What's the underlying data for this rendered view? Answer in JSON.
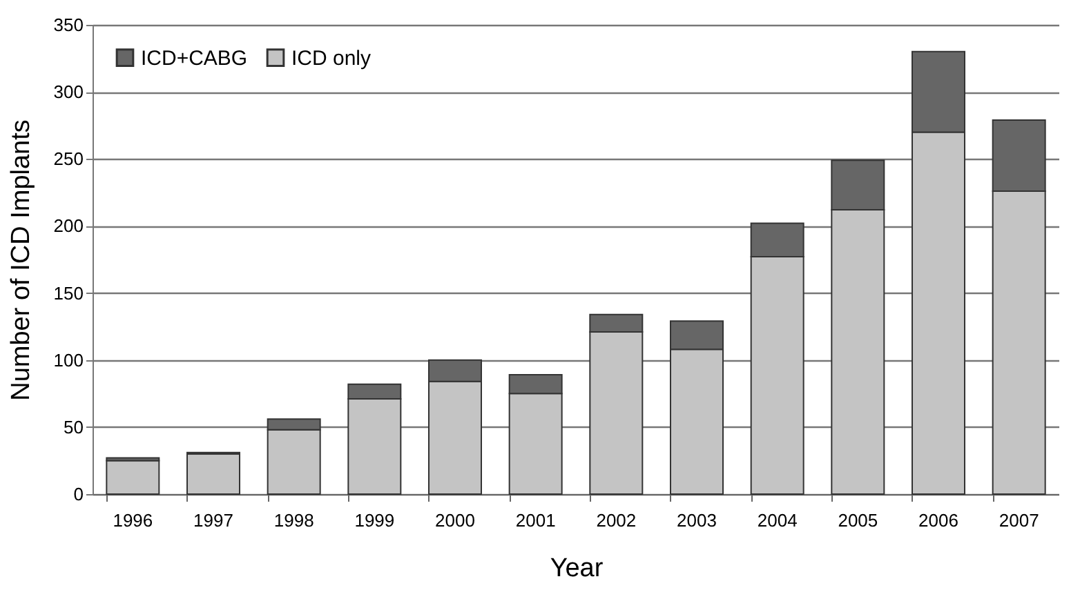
{
  "chart_data": {
    "type": "bar",
    "stacked": true,
    "xlabel": "Year",
    "ylabel": "Number of ICD Implants",
    "categories": [
      "1996",
      "1997",
      "1998",
      "1999",
      "2000",
      "2001",
      "2002",
      "2003",
      "2004",
      "2005",
      "2006",
      "2007"
    ],
    "series": [
      {
        "name": "ICD only",
        "color": "#c4c4c4",
        "values": [
          25,
          30,
          48,
          71,
          84,
          75,
          121,
          108,
          177,
          212,
          270,
          226
        ]
      },
      {
        "name": "ICD+CABG",
        "color": "#666666",
        "values": [
          2,
          1,
          8,
          11,
          16,
          14,
          13,
          21,
          25,
          37,
          60,
          53
        ]
      }
    ],
    "ylim": [
      0,
      350
    ],
    "yticks": [
      0,
      50,
      100,
      150,
      200,
      250,
      300,
      350
    ],
    "grid": "y",
    "legend": "top left"
  }
}
